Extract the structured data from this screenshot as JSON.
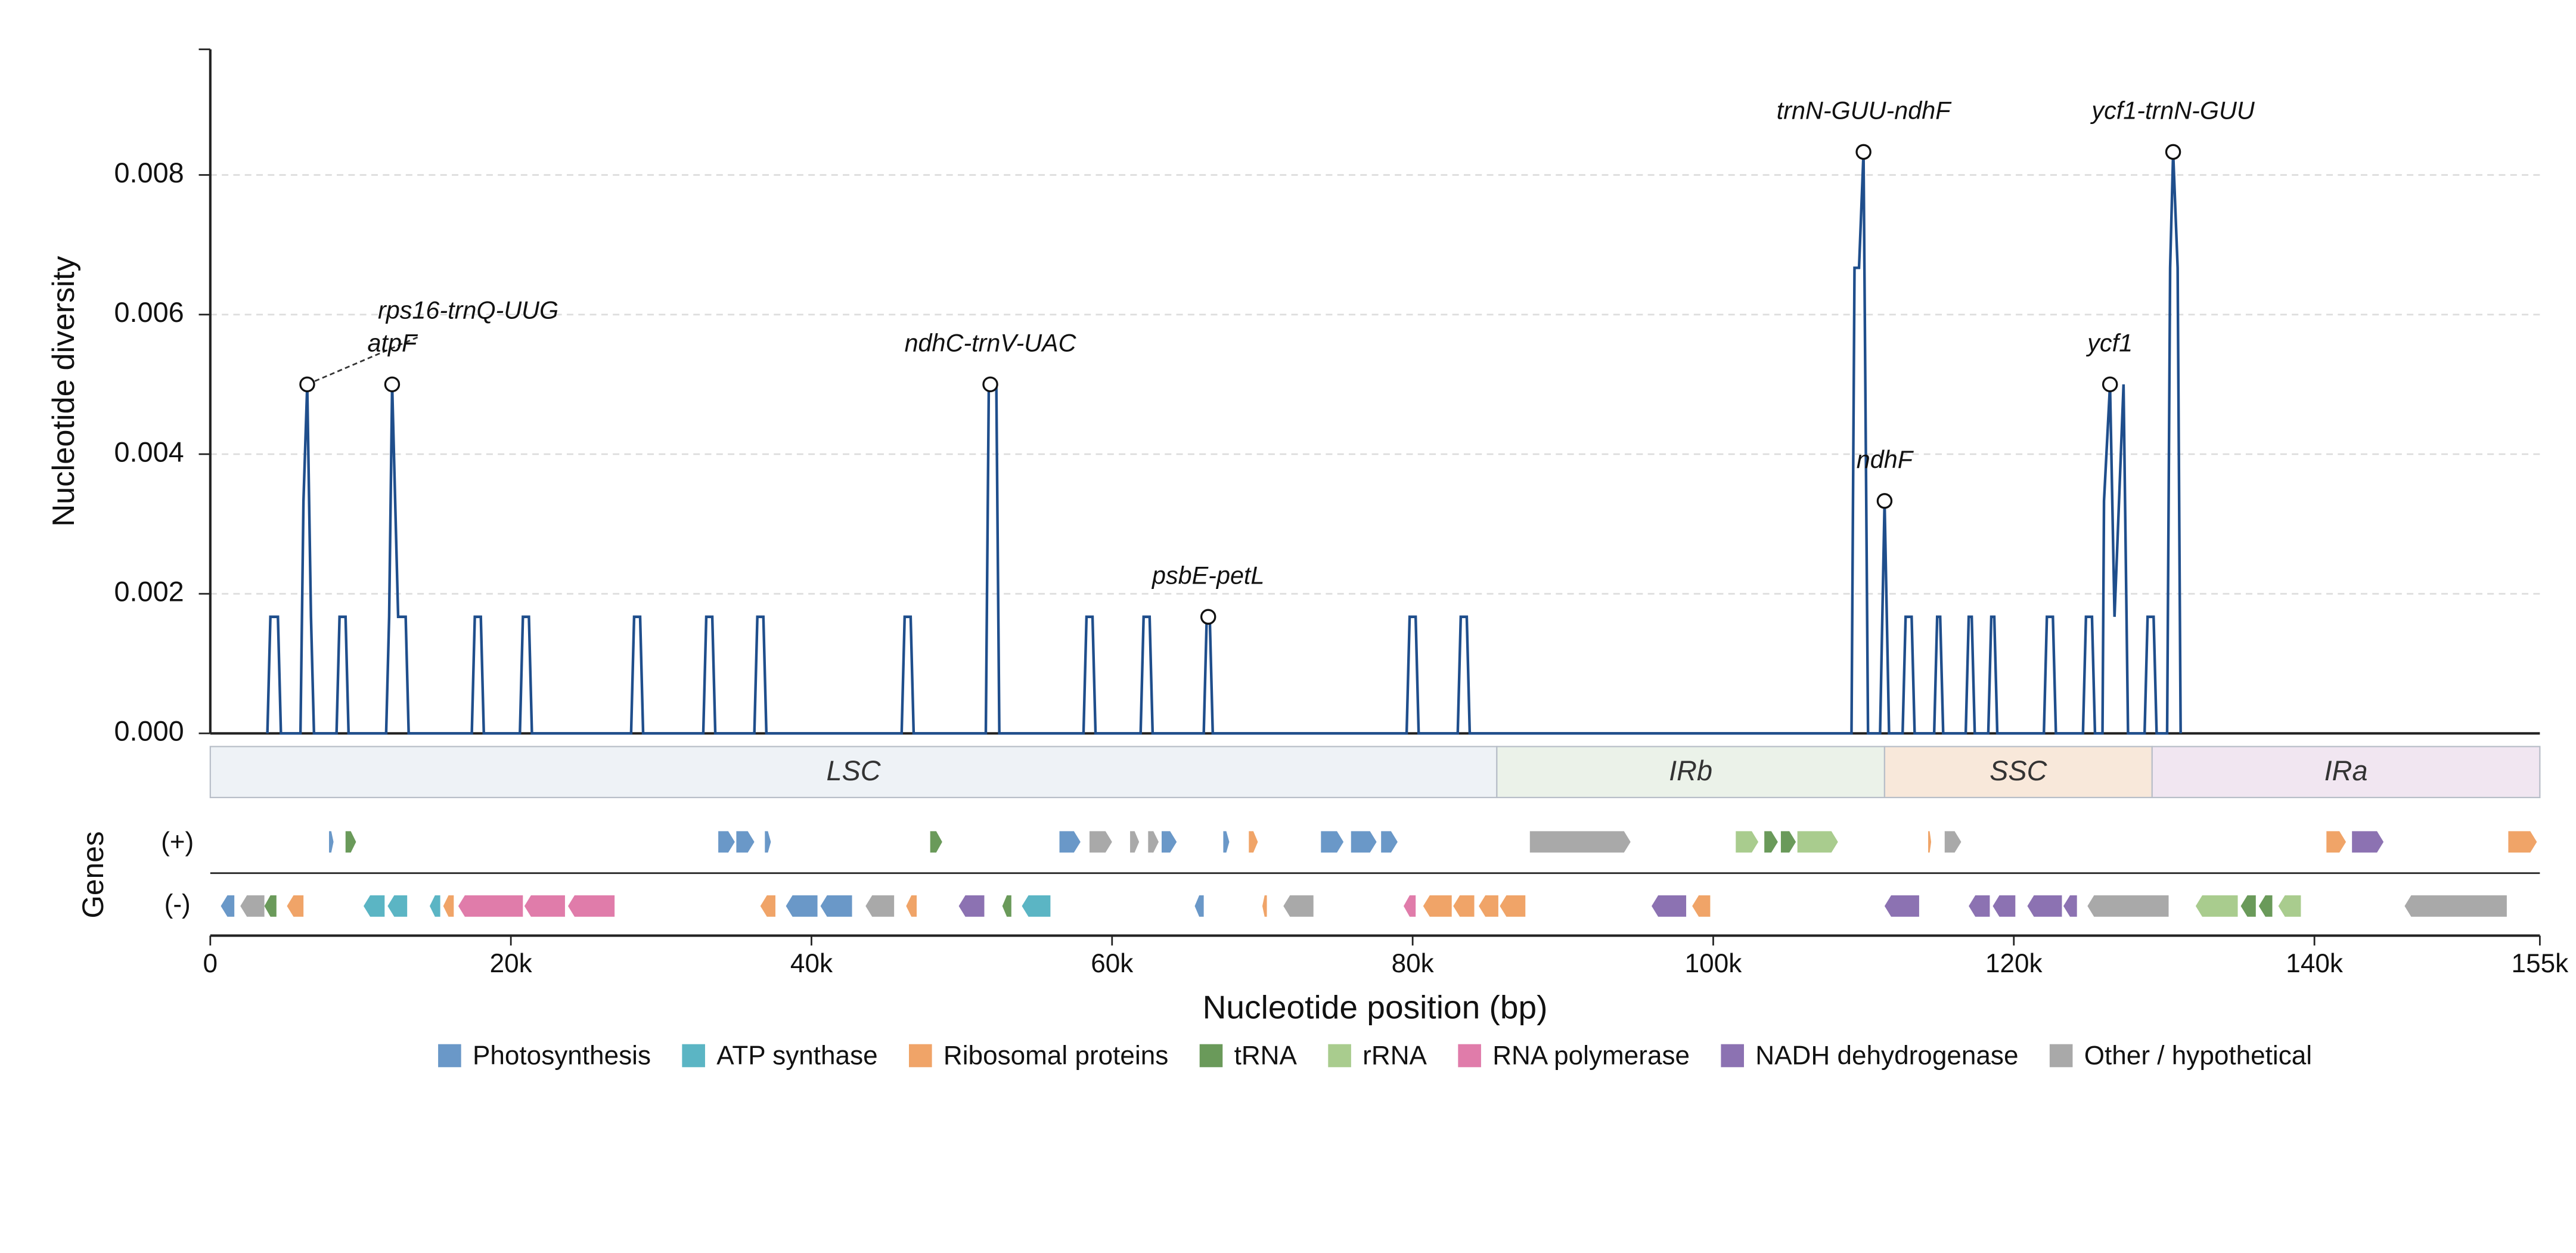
{
  "chart_data": {
    "type": "line",
    "color": "#1f4e8c",
    "y_label": "Nucleotide diversity",
    "x_label": "Nucleotide position (bp)",
    "genes_label": "Genes",
    "plus_label": "(+)",
    "minus_label": "(-)",
    "xlim": [
      0,
      155000
    ],
    "ylim": [
      0,
      0.0098
    ],
    "xticks": [
      0,
      {
        "value": 20000,
        "label": "20k"
      },
      {
        "value": 40000,
        "label": "40k"
      },
      {
        "value": 60000,
        "label": "60k"
      },
      {
        "value": 80000,
        "label": "80k"
      },
      {
        "value": 100000,
        "label": "100k"
      },
      {
        "value": 120000,
        "label": "120k"
      },
      {
        "value": 140000,
        "label": "140k"
      },
      {
        "value": 155000,
        "label": "155k"
      }
    ],
    "yticks": [
      {
        "value": 0,
        "label": "0.000"
      },
      0.002,
      0.004,
      0.006,
      0.008
    ],
    "grid": true,
    "x": [
      3800,
      4000,
      4500,
      4700,
      6000,
      6200,
      6450,
      6700,
      6900,
      8400,
      8600,
      9000,
      9200,
      11700,
      11900,
      12100,
      12300,
      12500,
      13000,
      13200,
      17400,
      17600,
      18000,
      18200,
      20600,
      20800,
      21200,
      21400,
      28000,
      28200,
      28600,
      28800,
      32800,
      33000,
      33400,
      33600,
      36200,
      36400,
      36800,
      37000,
      46000,
      46200,
      46600,
      46800,
      51600,
      51800,
      52300,
      52500,
      58100,
      58300,
      58700,
      58900,
      61900,
      62100,
      62500,
      62700,
      66100,
      66300,
      66500,
      66700,
      79600,
      79800,
      80200,
      80400,
      83000,
      83200,
      83600,
      83800,
      109200,
      109400,
      109700,
      110000,
      110300,
      111100,
      111400,
      111700,
      112600,
      112800,
      113200,
      113400,
      114700,
      114900,
      115100,
      115300,
      116800,
      117000,
      117200,
      117400,
      118300,
      118500,
      118700,
      118900,
      122000,
      122200,
      122600,
      122800,
      124600,
      124800,
      125200,
      125400,
      125900,
      126000,
      126400,
      126700,
      127000,
      127300,
      127600,
      128700,
      128900,
      129300,
      129500,
      130200,
      130400,
      130600,
      130900,
      131100
    ],
    "values": [
      0,
      0.00167,
      0.00167,
      0,
      0,
      0.00333,
      0.005,
      0.00167,
      0,
      0,
      0.00167,
      0.00167,
      0,
      0,
      0.00167,
      0.005,
      0.00333,
      0.00167,
      0.00167,
      0,
      0,
      0.00167,
      0.00167,
      0,
      0,
      0.00167,
      0.00167,
      0,
      0,
      0.00167,
      0.00167,
      0,
      0,
      0.00167,
      0.00167,
      0,
      0,
      0.00167,
      0.00167,
      0,
      0,
      0.00167,
      0.00167,
      0,
      0,
      0.005,
      0.005,
      0,
      0,
      0.00167,
      0.00167,
      0,
      0,
      0.00167,
      0.00167,
      0,
      0,
      0.00167,
      0.00167,
      0,
      0,
      0.00167,
      0.00167,
      0,
      0,
      0.00167,
      0.00167,
      0,
      0,
      0.00667,
      0.00667,
      0.00833,
      0,
      0,
      0.00333,
      0,
      0,
      0.00167,
      0.00167,
      0,
      0,
      0.00167,
      0.00167,
      0,
      0,
      0.00167,
      0.00167,
      0,
      0,
      0.00167,
      0.00167,
      0,
      0,
      0.00167,
      0.00167,
      0,
      0,
      0.00167,
      0.00167,
      0,
      0,
      0.00333,
      0.005,
      0.00167,
      0.00333,
      0.005,
      0,
      0,
      0.00167,
      0.00167,
      0,
      0,
      0.00667,
      0.00833,
      0.00667,
      0
    ],
    "annotations": [
      {
        "label": "rps16-trnQ-UUG",
        "x": 6450,
        "y": 0.005
      },
      {
        "label": "atpF",
        "x": 12100,
        "y": 0.005
      },
      {
        "label": "ndhC-trnV-UAC",
        "x": 51900,
        "y": 0.005
      },
      {
        "label": "psbE-petL",
        "x": 66400,
        "y": 0.00167
      },
      {
        "label": "trnN-GUU-ndhF",
        "x": 110000,
        "y": 0.00833
      },
      {
        "label": "ndhF",
        "x": 111400,
        "y": 0.00333
      },
      {
        "label": "ycf1",
        "x": 126400,
        "y": 0.005
      },
      {
        "label": "ycf1-trnN-GUU",
        "x": 130600,
        "y": 0.00833
      }
    ],
    "regions": [
      {
        "name": "LSC",
        "start": 0,
        "end": 85600,
        "color": "#eef2f6"
      },
      {
        "name": "IRb",
        "start": 85600,
        "end": 111400,
        "color": "#ebf2e9"
      },
      {
        "name": "SSC",
        "start": 111400,
        "end": 129200,
        "color": "#f8e8da"
      },
      {
        "name": "IRa",
        "start": 129200,
        "end": 155000,
        "color": "#f1e6f1"
      }
    ],
    "categories": [
      {
        "name": "Photosynthesis",
        "color": "#6a98c8"
      },
      {
        "name": "ATP synthase",
        "color": "#5bb5c4"
      },
      {
        "name": "Ribosomal proteins",
        "color": "#f0a468"
      },
      {
        "name": "tRNA",
        "color": "#6a9a5a"
      },
      {
        "name": "rRNA",
        "color": "#a9cc8e"
      },
      {
        "name": "RNA polymerase",
        "color": "#e07caa"
      },
      {
        "name": "NADH dehydrogenase",
        "color": "#8c72b2"
      },
      {
        "name": "Other / hypothetical",
        "color": "#a9a9a9"
      }
    ],
    "genes": {
      "plus": [
        [
          7900,
          8200,
          0
        ],
        [
          9000,
          9700,
          3
        ],
        [
          33800,
          34900,
          0
        ],
        [
          35000,
          36200,
          0
        ],
        [
          36900,
          37300,
          0
        ],
        [
          47900,
          48700,
          3
        ],
        [
          56500,
          57900,
          0
        ],
        [
          58500,
          60000,
          7
        ],
        [
          61200,
          61800,
          7
        ],
        [
          62400,
          63100,
          7
        ],
        [
          63300,
          64300,
          0
        ],
        [
          67400,
          67800,
          0
        ],
        [
          69100,
          69700,
          2
        ],
        [
          73900,
          75400,
          0
        ],
        [
          75900,
          77600,
          0
        ],
        [
          77900,
          79000,
          0
        ],
        [
          87800,
          94500,
          7
        ],
        [
          101500,
          103000,
          4
        ],
        [
          103400,
          104300,
          3
        ],
        [
          104500,
          105500,
          3
        ],
        [
          105600,
          108300,
          4
        ],
        [
          114300,
          114500,
          2
        ],
        [
          115400,
          116500,
          7
        ],
        [
          140800,
          142100,
          2
        ],
        [
          142500,
          144600,
          6
        ],
        [
          152900,
          154800,
          2
        ]
      ],
      "minus": [
        [
          700,
          1600,
          0
        ],
        [
          2000,
          3600,
          7
        ],
        [
          3600,
          4400,
          3
        ],
        [
          5100,
          6200,
          2
        ],
        [
          10200,
          11600,
          1
        ],
        [
          11800,
          13100,
          1
        ],
        [
          14600,
          15300,
          1
        ],
        [
          15500,
          16200,
          2
        ],
        [
          16500,
          20800,
          5
        ],
        [
          20900,
          23600,
          5
        ],
        [
          23800,
          26900,
          5
        ],
        [
          36600,
          37600,
          2
        ],
        [
          38300,
          40400,
          0
        ],
        [
          40600,
          42700,
          0
        ],
        [
          43600,
          45500,
          7
        ],
        [
          46300,
          47000,
          2
        ],
        [
          49800,
          51500,
          6
        ],
        [
          52700,
          53300,
          3
        ],
        [
          54000,
          55900,
          1
        ],
        [
          65500,
          66100,
          0
        ],
        [
          70000,
          70300,
          2
        ],
        [
          71400,
          73400,
          7
        ],
        [
          79400,
          80200,
          5
        ],
        [
          80700,
          82600,
          2
        ],
        [
          82700,
          84100,
          2
        ],
        [
          84400,
          85700,
          2
        ],
        [
          85800,
          87500,
          2
        ],
        [
          95900,
          98200,
          6
        ],
        [
          98600,
          99800,
          2
        ],
        [
          111400,
          113700,
          6
        ],
        [
          117000,
          118400,
          6
        ],
        [
          118600,
          120100,
          6
        ],
        [
          120900,
          123200,
          6
        ],
        [
          123300,
          124200,
          6
        ],
        [
          124900,
          130300,
          7
        ],
        [
          132100,
          134900,
          4
        ],
        [
          135100,
          136100,
          3
        ],
        [
          136300,
          137200,
          3
        ],
        [
          137600,
          139100,
          4
        ],
        [
          146000,
          152800,
          7
        ]
      ]
    }
  }
}
